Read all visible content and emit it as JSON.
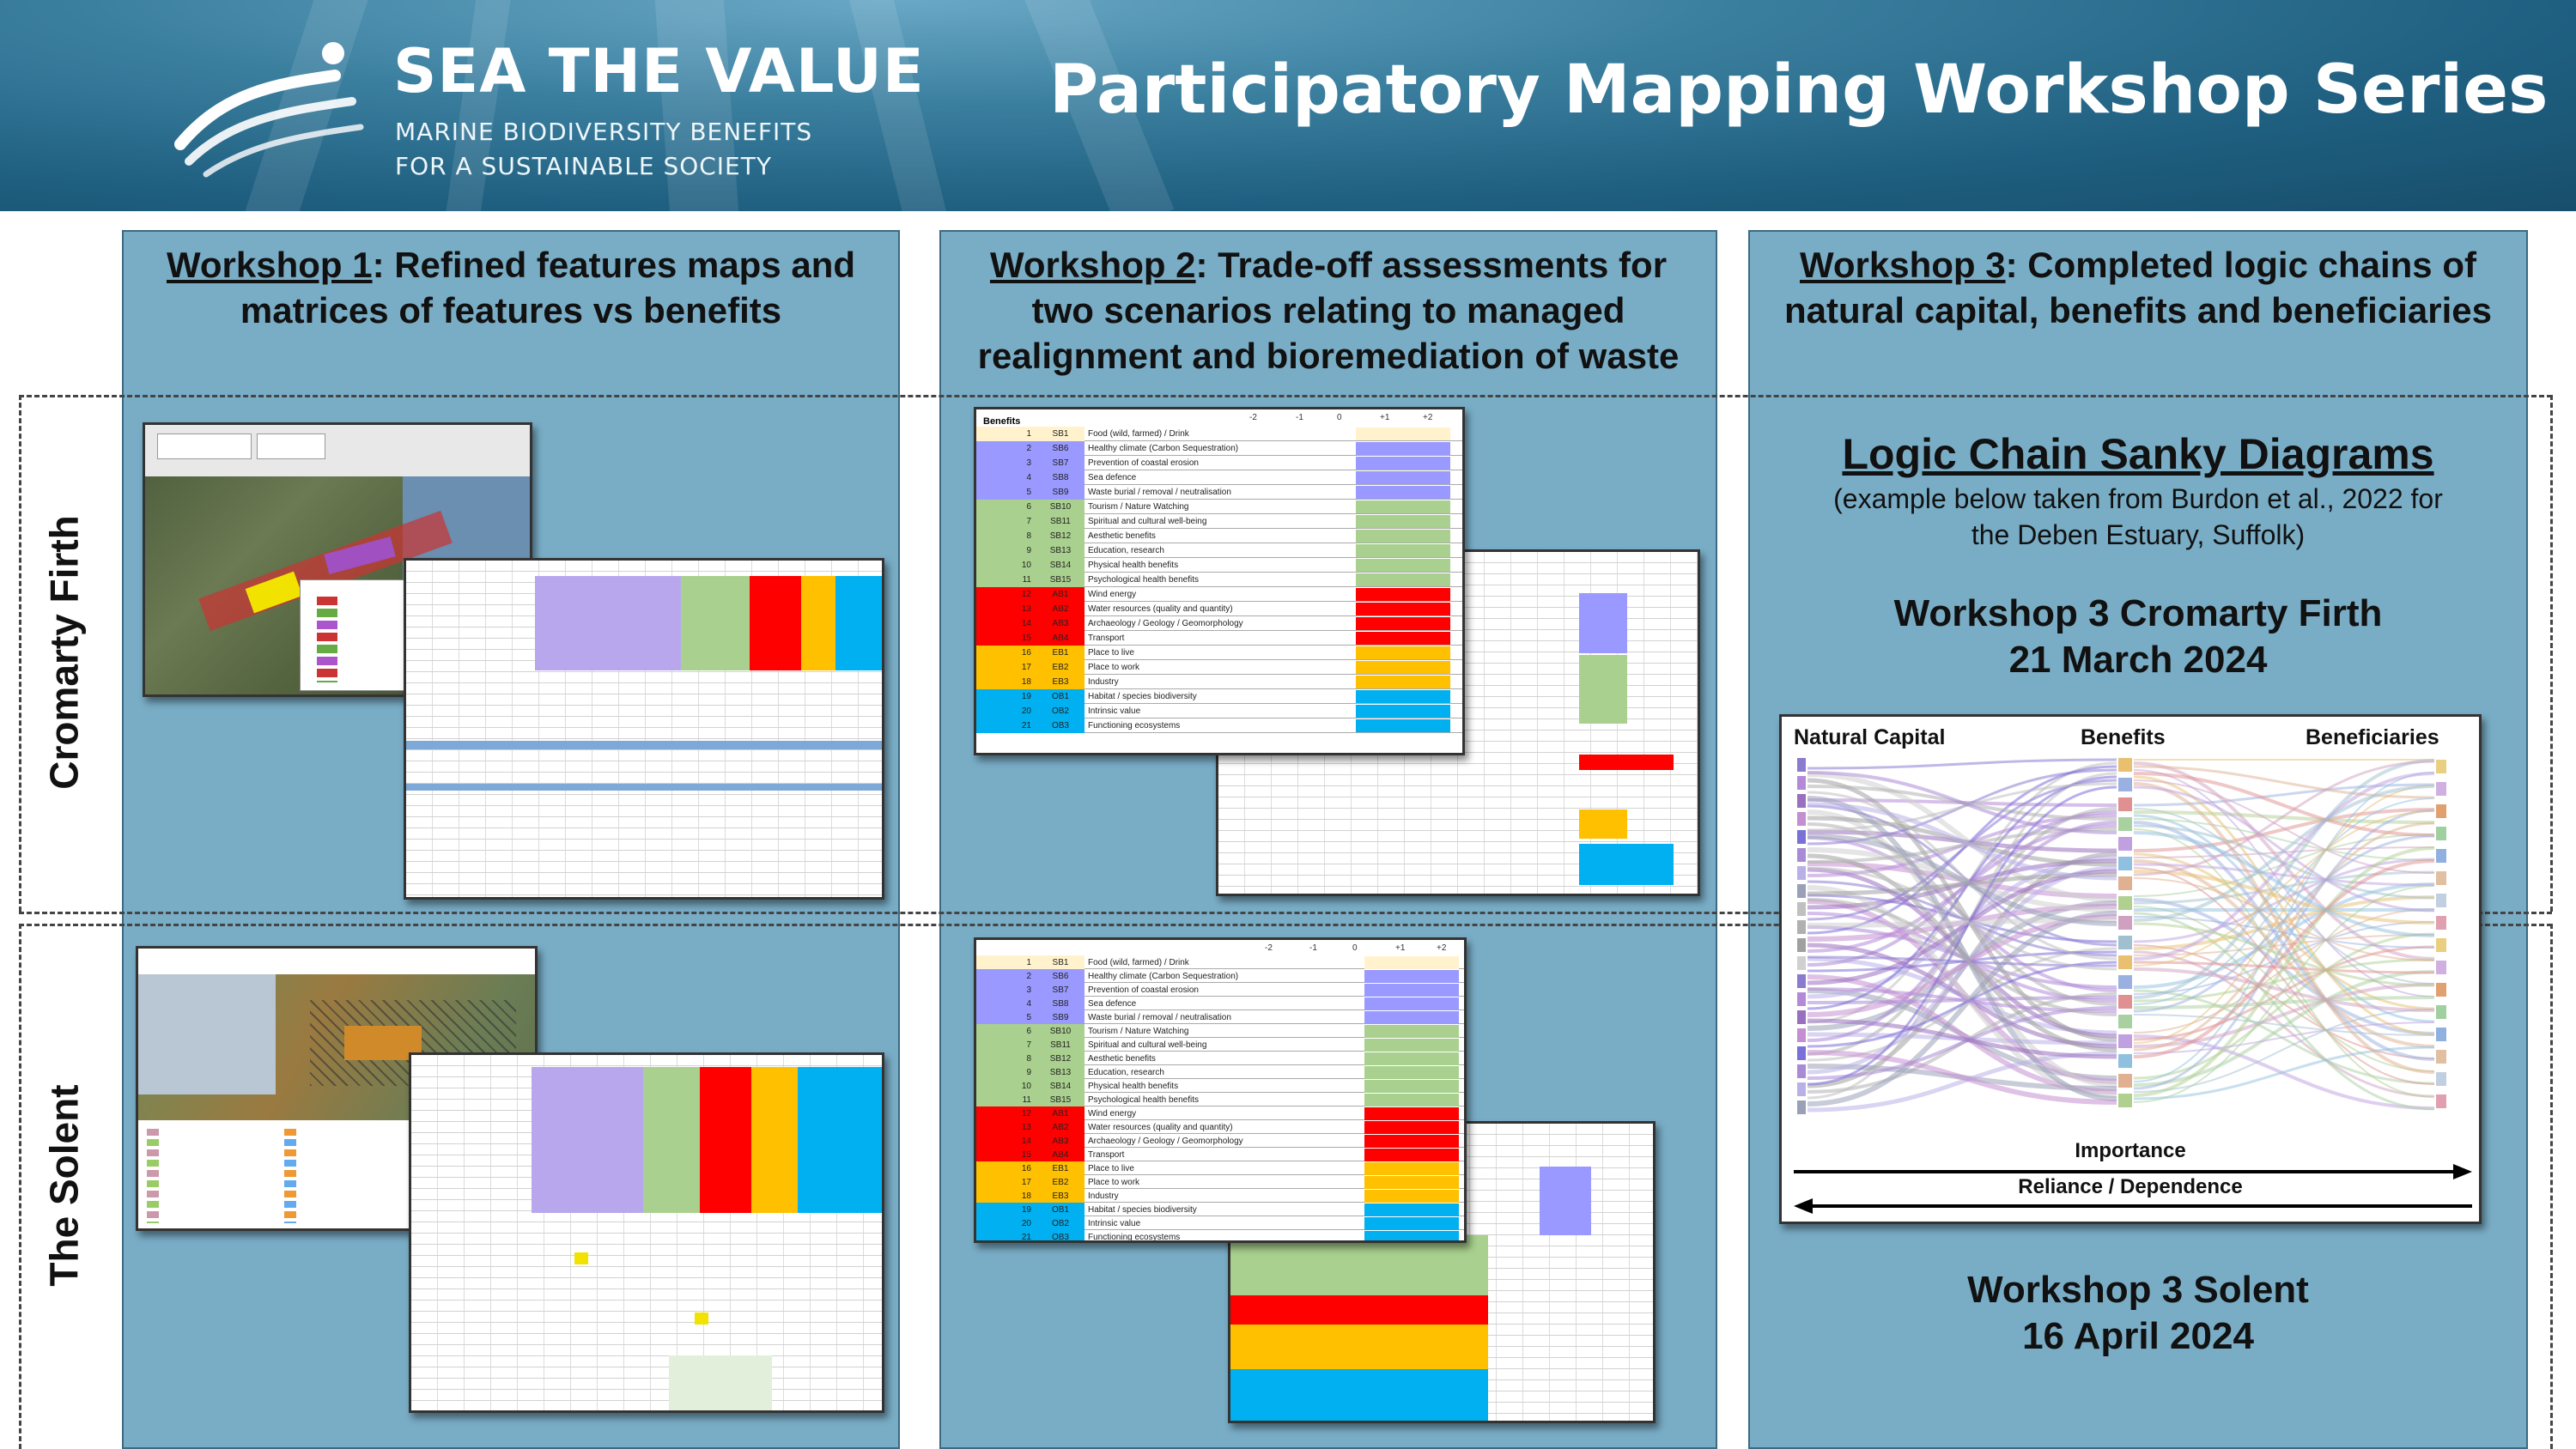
{
  "header": {
    "brand_title": "SEA THE VALUE",
    "brand_sub_line1": "MARINE BIODIVERSITY BENEFITS",
    "brand_sub_line2": "FOR A SUSTAINABLE SOCIETY",
    "series_title": "Participatory Mapping Workshop Series"
  },
  "columns": [
    {
      "label": "Workshop 1",
      "text_line1": ": Refined features maps and",
      "text_line2": "matrices of features vs benefits",
      "text_line3": ""
    },
    {
      "label": "Workshop 2",
      "text_line1": ": Trade-off assessments for",
      "text_line2": "two scenarios relating to managed",
      "text_line3": "realignment and bioremediation of waste"
    },
    {
      "label": "Workshop 3",
      "text_line1": ": Completed logic chains of",
      "text_line2": "natural capital, benefits and beneficiaries",
      "text_line3": ""
    }
  ],
  "rows": {
    "top": "Cromarty Firth",
    "bottom": "The Solent"
  },
  "workshop3": {
    "title": "Logic Chain Sanky Diagrams",
    "subtitle_line1": "(example below taken from Burdon et al., 2022 for",
    "subtitle_line2": "the Deben Estuary, Suffolk)",
    "cromarty_line1": "Workshop 3 Cromarty Firth",
    "cromarty_line2": "21 March 2024",
    "solent_line1": "Workshop 3 Solent",
    "solent_line2": "16 April 2024"
  },
  "sankey": {
    "col_natural_capital": "Natural Capital",
    "col_benefits": "Benefits",
    "col_beneficiaries": "Beneficiaries",
    "arrow_importance": "Importance",
    "arrow_reliance": "Reliance / Dependence"
  },
  "matrix": {
    "heading": "Benefits",
    "axis": [
      "-2",
      "-1",
      "0",
      "+1",
      "+2"
    ],
    "rows": [
      {
        "n": "1",
        "code": "SB1",
        "name": "Food (wild, farmed) / Drink",
        "color": "#fff2cc"
      },
      {
        "n": "2",
        "code": "SB6",
        "name": "Healthy climate (Carbon Sequestration)",
        "color": "#9999ff"
      },
      {
        "n": "3",
        "code": "SB7",
        "name": "Prevention of coastal erosion",
        "color": "#9999ff"
      },
      {
        "n": "4",
        "code": "SB8",
        "name": "Sea defence",
        "color": "#9999ff"
      },
      {
        "n": "5",
        "code": "SB9",
        "name": "Waste burial / removal / neutralisation",
        "color": "#9999ff"
      },
      {
        "n": "6",
        "code": "SB10",
        "name": "Tourism / Nature Watching",
        "color": "#a9d08e"
      },
      {
        "n": "7",
        "code": "SB11",
        "name": "Spiritual and cultural well-being",
        "color": "#a9d08e"
      },
      {
        "n": "8",
        "code": "SB12",
        "name": "Aesthetic benefits",
        "color": "#a9d08e"
      },
      {
        "n": "9",
        "code": "SB13",
        "name": "Education, research",
        "color": "#a9d08e"
      },
      {
        "n": "10",
        "code": "SB14",
        "name": "Physical health benefits",
        "color": "#a9d08e"
      },
      {
        "n": "11",
        "code": "SB15",
        "name": "Psychological health benefits",
        "color": "#a9d08e"
      },
      {
        "n": "12",
        "code": "AB1",
        "name": "Wind energy",
        "color": "#ff0000"
      },
      {
        "n": "13",
        "code": "AB2",
        "name": "Water resources (quality and quantity)",
        "color": "#ff0000"
      },
      {
        "n": "14",
        "code": "AB3",
        "name": "Archaeology / Geology / Geomorphology",
        "color": "#ff0000"
      },
      {
        "n": "15",
        "code": "AB4",
        "name": "Transport",
        "color": "#ff0000"
      },
      {
        "n": "16",
        "code": "EB1",
        "name": "Place to live",
        "color": "#ffc000"
      },
      {
        "n": "17",
        "code": "EB2",
        "name": "Place to work",
        "color": "#ffc000"
      },
      {
        "n": "18",
        "code": "EB3",
        "name": "Industry",
        "color": "#ffc000"
      },
      {
        "n": "19",
        "code": "OB1",
        "name": "Habitat / species biodiversity",
        "color": "#00b0f0"
      },
      {
        "n": "20",
        "code": "OB2",
        "name": "Intrinsic value",
        "color": "#00b0f0"
      },
      {
        "n": "21",
        "code": "OB3",
        "name": "Functioning ecosystems",
        "color": "#00b0f0"
      }
    ]
  }
}
